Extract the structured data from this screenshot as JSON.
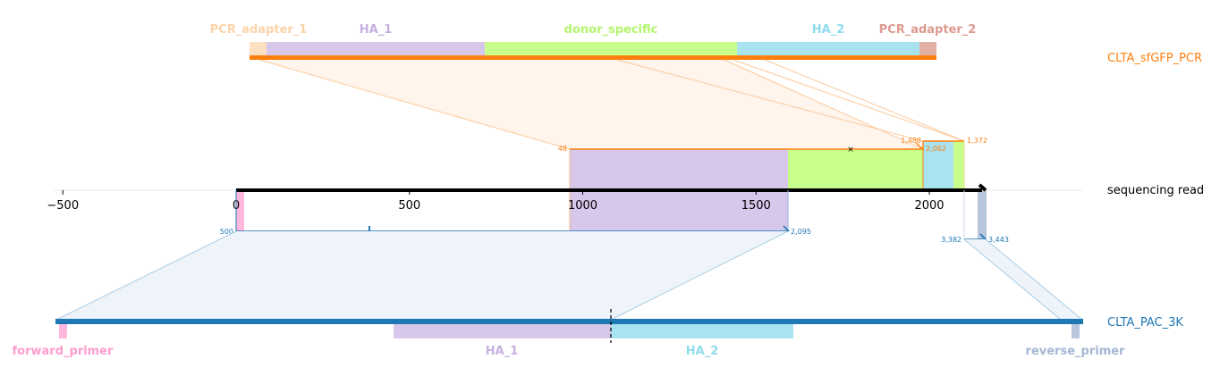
{
  "colors": {
    "pcr_orange": "#ff7f0e",
    "pac_blue": "#1f77b4",
    "read_black": "#000000",
    "ha1": "#d7c7ea",
    "ha2": "#a9e3ef",
    "donor_specific": "#c8ff8c",
    "pcr_adapter_1": "#fde0c2",
    "pcr_adapter_2": "#e2b0a6",
    "forward_primer": "#ffb7dd",
    "reverse_primer": "#b8c6de",
    "label_pcr_adapter_1": "#fcd4a8",
    "label_ha1": "#c5b0e0",
    "label_donor_specific": "#b3f56a",
    "label_ha2": "#8fdbea",
    "label_pcr_adapter_2": "#dc9a8e",
    "label_forward_primer": "#ff9ccf",
    "label_reverse_primer": "#a4b6d4"
  },
  "references": {
    "top": "CLTA_sfGFP_PCR",
    "read": "sequencing read",
    "bottom": "CLTA_PAC_3K"
  },
  "top_features": [
    {
      "key": "pcr_adapter_1",
      "label": "PCR_adapter_1"
    },
    {
      "key": "ha1",
      "label": "HA_1"
    },
    {
      "key": "donor_specific",
      "label": "donor_specific"
    },
    {
      "key": "ha2",
      "label": "HA_2"
    },
    {
      "key": "pcr_adapter_2",
      "label": "PCR_adapter_2"
    }
  ],
  "bottom_features": [
    {
      "key": "forward_primer",
      "label": "forward_primer"
    },
    {
      "key": "ha1",
      "label": "HA_1"
    },
    {
      "key": "ha2",
      "label": "HA_2"
    },
    {
      "key": "reverse_primer",
      "label": "reverse_primer"
    }
  ],
  "axis": {
    "ticks": [
      {
        "value": -500,
        "label": "−500"
      },
      {
        "value": 0,
        "label": "0"
      },
      {
        "value": 500,
        "label": "500"
      },
      {
        "value": 1000,
        "label": "1000"
      },
      {
        "value": 1500,
        "label": "1500"
      },
      {
        "value": 2000,
        "label": "2000"
      }
    ],
    "read_length": 2157
  },
  "alignments": [
    {
      "name": "pcr-alignment-main",
      "ref": "top",
      "read_start": 963,
      "read_end": 1988,
      "ref_start_label": "48",
      "ref_end_label": "1,488",
      "mismatch_at": 1780
    },
    {
      "name": "pcr-alignment-end",
      "ref": "top",
      "read_start": 1988,
      "read_end": 2100,
      "ref_start_label": "2,062",
      "ref_end_label": "1,372"
    },
    {
      "name": "pac-alignment-main",
      "ref": "bottom",
      "read_start": 0,
      "read_end": 1597,
      "ref_start_label": "500",
      "ref_end_label": "2,095",
      "mismatch_at": 383
    },
    {
      "name": "pac-alignment-end",
      "ref": "bottom",
      "read_start": 2100,
      "read_end": 2157,
      "ref_start_label": "3,382",
      "ref_end_label": "3,443"
    }
  ]
}
